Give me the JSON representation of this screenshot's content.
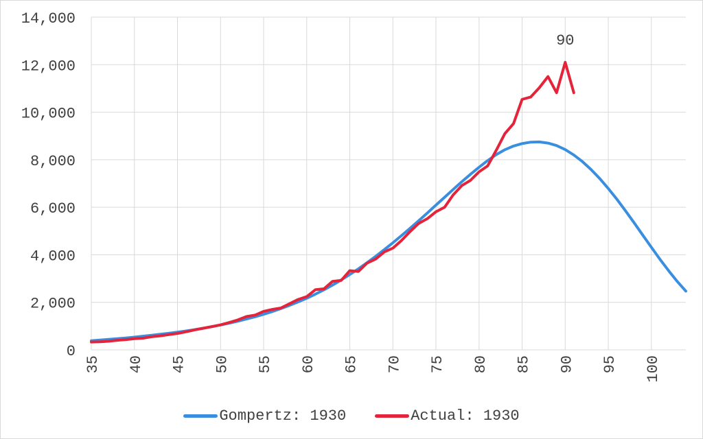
{
  "chart_data": {
    "type": "line",
    "title": "",
    "xlabel": "",
    "ylabel": "",
    "xlim": [
      35,
      104
    ],
    "ylim": [
      0,
      14000
    ],
    "y_ticks": [
      0,
      2000,
      4000,
      6000,
      8000,
      10000,
      12000,
      14000
    ],
    "y_tick_labels": [
      "0",
      "2,000",
      "4,000",
      "6,000",
      "8,000",
      "10,000",
      "12,000",
      "14,000"
    ],
    "x_ticks": [
      35,
      40,
      45,
      50,
      55,
      60,
      65,
      70,
      75,
      80,
      85,
      90,
      95,
      100
    ],
    "x_tick_labels": [
      "35",
      "40",
      "45",
      "50",
      "55",
      "60",
      "65",
      "70",
      "75",
      "80",
      "85",
      "90",
      "95",
      "100"
    ],
    "grid": true,
    "legend_position": "bottom",
    "series": [
      {
        "name": "Gompertz: 1930",
        "color": "#3a8ee0",
        "x": [
          35,
          36,
          37,
          38,
          39,
          40,
          41,
          42,
          43,
          44,
          45,
          46,
          47,
          48,
          49,
          50,
          51,
          52,
          53,
          54,
          55,
          56,
          57,
          58,
          59,
          60,
          61,
          62,
          63,
          64,
          65,
          66,
          67,
          68,
          69,
          70,
          71,
          72,
          73,
          74,
          75,
          76,
          77,
          78,
          79,
          80,
          81,
          82,
          83,
          84,
          85,
          86,
          87,
          88,
          89,
          90,
          91,
          92,
          93,
          94,
          95,
          96,
          97,
          98,
          99,
          100,
          101,
          102,
          103,
          104
        ],
        "values": [
          380,
          410,
          440,
          470,
          500,
          535,
          575,
          615,
          655,
          700,
          745,
          795,
          850,
          910,
          975,
          1045,
          1120,
          1205,
          1295,
          1390,
          1495,
          1610,
          1735,
          1870,
          2015,
          2170,
          2340,
          2525,
          2725,
          2940,
          3170,
          3410,
          3665,
          3935,
          4215,
          4505,
          4805,
          5115,
          5435,
          5760,
          6090,
          6420,
          6750,
          7075,
          7385,
          7685,
          7965,
          8215,
          8420,
          8575,
          8680,
          8740,
          8750,
          8700,
          8595,
          8425,
          8200,
          7920,
          7590,
          7210,
          6790,
          6335,
          5850,
          5345,
          4830,
          4315,
          3810,
          3330,
          2880,
          2470
        ]
      },
      {
        "name": "Actual: 1930",
        "color": "#e3243b",
        "x": [
          35,
          36,
          37,
          38,
          39,
          40,
          41,
          42,
          43,
          44,
          45,
          46,
          47,
          48,
          49,
          50,
          51,
          52,
          53,
          54,
          55,
          56,
          57,
          58,
          59,
          60,
          61,
          62,
          63,
          64,
          65,
          66,
          67,
          68,
          69,
          70,
          71,
          72,
          73,
          74,
          75,
          76,
          77,
          78,
          79,
          80,
          81,
          82,
          83,
          84,
          85,
          86,
          87,
          88,
          89,
          90,
          91
        ],
        "values": [
          330,
          340,
          360,
          400,
          430,
          470,
          490,
          550,
          590,
          640,
          690,
          760,
          840,
          910,
          980,
          1050,
          1150,
          1260,
          1400,
          1460,
          1620,
          1700,
          1760,
          1940,
          2120,
          2240,
          2530,
          2570,
          2880,
          2920,
          3330,
          3300,
          3650,
          3820,
          4120,
          4280,
          4600,
          4980,
          5320,
          5520,
          5810,
          6000,
          6520,
          6910,
          7130,
          7490,
          7740,
          8400,
          9100,
          9520,
          10540,
          10640,
          11030,
          11500,
          10820,
          12100,
          10820
        ]
      }
    ],
    "annotations": [
      {
        "text": "90",
        "x": 90,
        "y": 12100
      }
    ]
  }
}
